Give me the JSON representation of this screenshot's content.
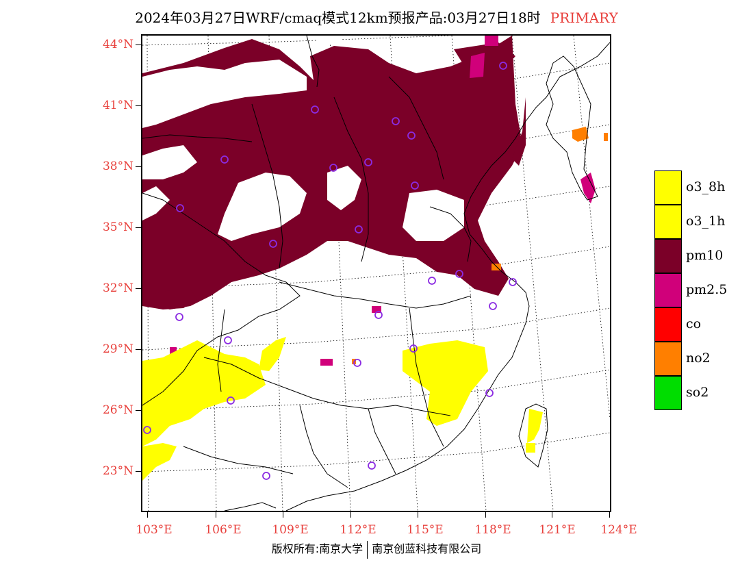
{
  "title": "2024年03月27日WRF/cmaq模式12km预报产品:03月27日18时",
  "title_tag": "PRIMARY",
  "lat_labels": [
    "44°N",
    "41°N",
    "38°N",
    "35°N",
    "32°N",
    "29°N",
    "26°N",
    "23°N"
  ],
  "lon_labels": [
    "103°E",
    "106°E",
    "109°E",
    "112°E",
    "115°E",
    "118°E",
    "121°E",
    "124°E"
  ],
  "legend": [
    {
      "label": "o3_8h",
      "color": "#ffff00"
    },
    {
      "label": "o3_1h",
      "color": "#ffff00"
    },
    {
      "label": "pm10",
      "color": "#7b0028"
    },
    {
      "label": "pm2.5",
      "color": "#d0007a"
    },
    {
      "label": "co",
      "color": "#ff0000"
    },
    {
      "label": "no2",
      "color": "#ff7f00"
    },
    {
      "label": "so2",
      "color": "#00dd00"
    }
  ],
  "footer_left": "版权所有:南京大学",
  "footer_right": "南京创蓝科技有限公司",
  "colors": {
    "label_red": "#e8403c",
    "pm10": "#7b0028",
    "pm25": "#d0007a",
    "o3": "#ffff00",
    "no2": "#ff7f00",
    "station": "#8b2be2"
  }
}
